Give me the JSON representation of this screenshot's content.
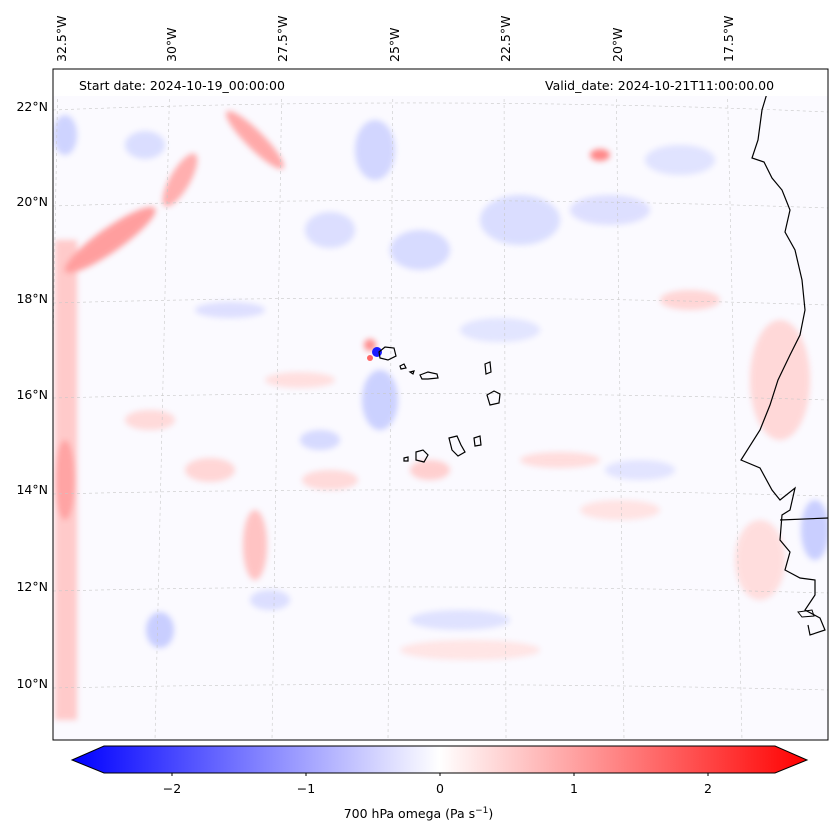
{
  "header": {
    "start_date": "Start date: 2024-10-19_00:00:00",
    "valid_date": "Valid_date: 2024-10-21T11:00:00.00"
  },
  "lon_labels": [
    "32.5°W",
    "30°W",
    "27.5°W",
    "25°W",
    "22.5°W",
    "20°W",
    "17.5°W"
  ],
  "lat_labels": [
    "22°N",
    "20°N",
    "18°N",
    "16°N",
    "14°N",
    "12°N",
    "10°N"
  ],
  "colorbar": {
    "ticks": [
      "−2",
      "−1",
      "0",
      "1",
      "2"
    ],
    "title": "700 hPa omega (Pa s",
    "title_sup": "−1",
    "title_end": ")",
    "colors": {
      "neg": "#0000ff",
      "mid": "#ffffff",
      "pos": "#ff0000"
    }
  },
  "map": {
    "field": "700 hPa omega",
    "coastline_color": "#000000"
  }
}
